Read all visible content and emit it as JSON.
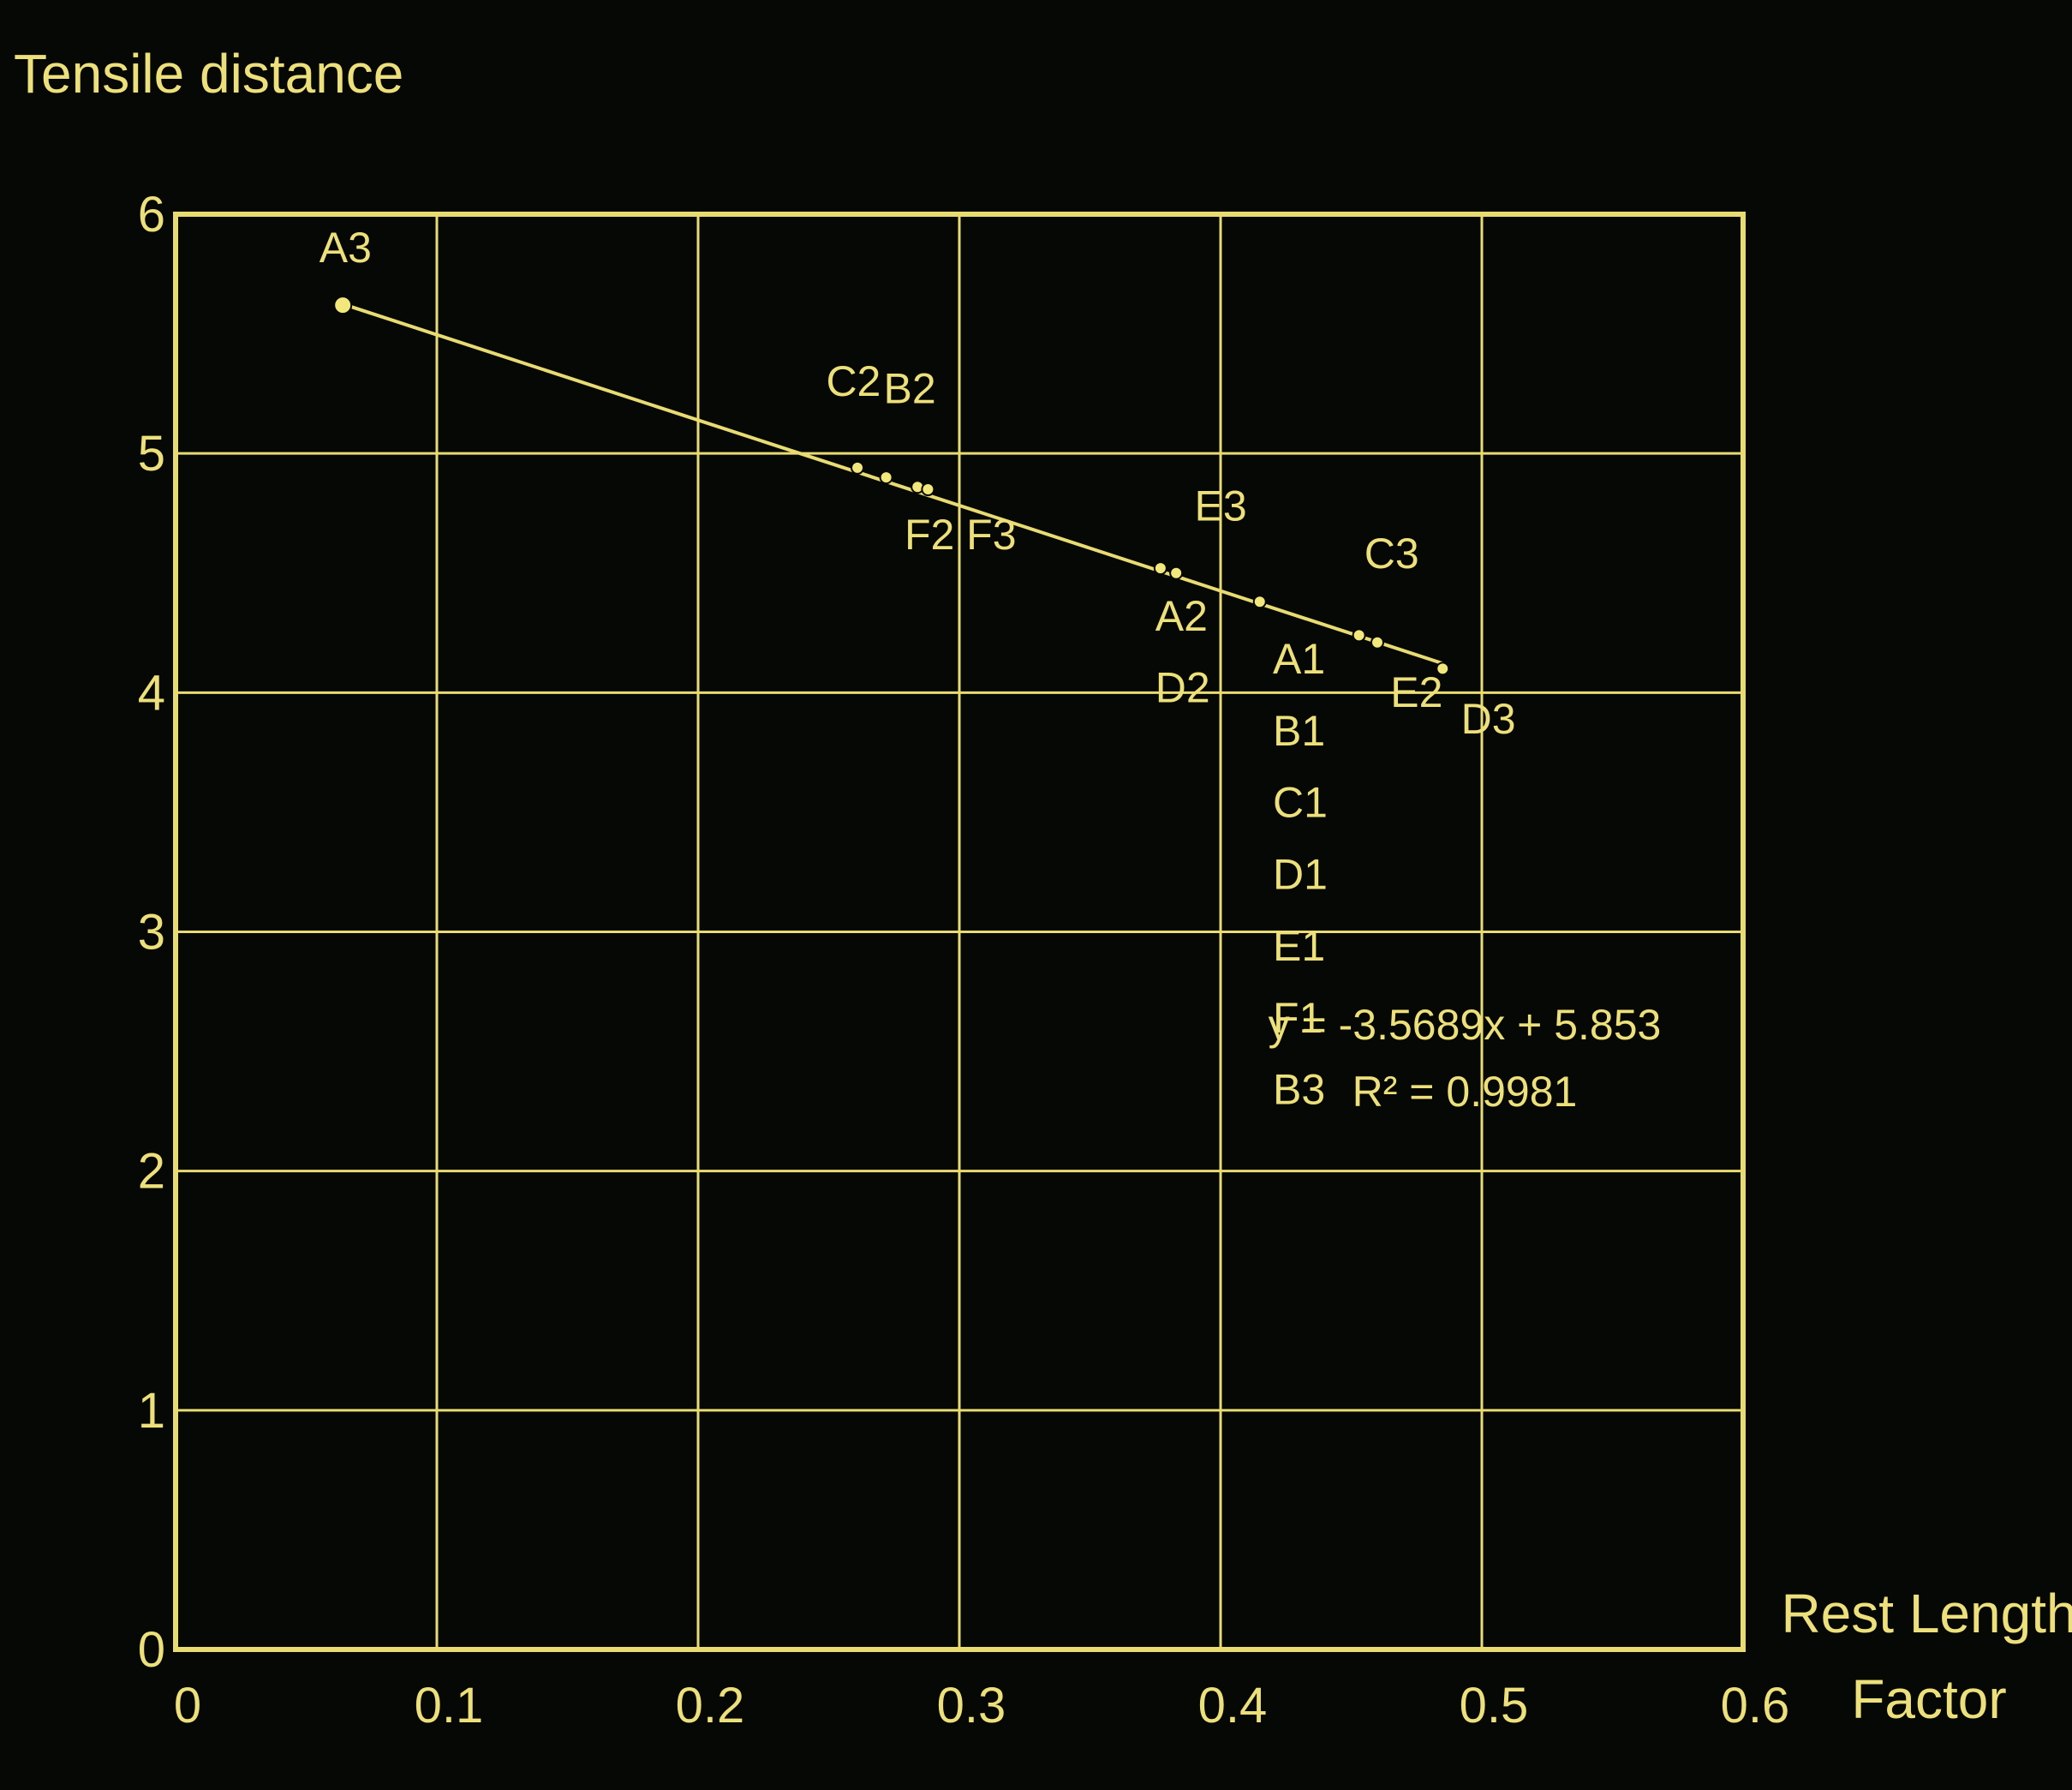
{
  "chart_data": {
    "type": "scatter",
    "ylabel": "Tensile distance",
    "xlabel_lines": [
      "Rest Length",
      "Factor"
    ],
    "xlim": [
      0,
      0.6
    ],
    "ylim": [
      0,
      6
    ],
    "x_ticks": [
      0,
      0.1,
      0.2,
      0.3,
      0.4,
      0.5,
      0.6
    ],
    "y_ticks": [
      0,
      1,
      2,
      3,
      4,
      5,
      6
    ],
    "x_tick_labels": [
      "0",
      "0.1",
      "0.2",
      "0.3",
      "0.4",
      "0.5",
      "0.6"
    ],
    "y_tick_labels": [
      "0",
      "1",
      "2",
      "3",
      "4",
      "5",
      "6"
    ],
    "grid": true,
    "points": [
      {
        "x": 0.064,
        "y": 5.62
      },
      {
        "x": 0.261,
        "y": 4.94
      },
      {
        "x": 0.272,
        "y": 4.9
      },
      {
        "x": 0.284,
        "y": 4.86
      },
      {
        "x": 0.288,
        "y": 4.85
      },
      {
        "x": 0.377,
        "y": 4.52
      },
      {
        "x": 0.383,
        "y": 4.5
      },
      {
        "x": 0.415,
        "y": 4.38
      },
      {
        "x": 0.453,
        "y": 4.24
      },
      {
        "x": 0.46,
        "y": 4.21
      },
      {
        "x": 0.485,
        "y": 4.1
      }
    ],
    "point_labels": [
      {
        "text": "A3",
        "x": 0.055,
        "y": 5.8
      },
      {
        "text": "C2",
        "x": 0.249,
        "y": 5.24
      },
      {
        "text": "B2",
        "x": 0.271,
        "y": 5.21
      },
      {
        "text": "F2 F3",
        "x": 0.279,
        "y": 4.6
      },
      {
        "text": "E3",
        "x": 0.39,
        "y": 4.72
      },
      {
        "text": "A2",
        "x": 0.375,
        "y": 4.26
      },
      {
        "text": "D2",
        "x": 0.375,
        "y": 3.96
      },
      {
        "text": "A1",
        "x": 0.42,
        "y": 4.08
      },
      {
        "text": "B1",
        "x": 0.42,
        "y": 3.78
      },
      {
        "text": "C1",
        "x": 0.42,
        "y": 3.48
      },
      {
        "text": "D1",
        "x": 0.42,
        "y": 3.18
      },
      {
        "text": "E1",
        "x": 0.42,
        "y": 2.88
      },
      {
        "text": "F1",
        "x": 0.42,
        "y": 2.58
      },
      {
        "text": "B3",
        "x": 0.42,
        "y": 2.28
      },
      {
        "text": "C3",
        "x": 0.455,
        "y": 4.52
      },
      {
        "text": "E2",
        "x": 0.465,
        "y": 3.94
      },
      {
        "text": "D3",
        "x": 0.492,
        "y": 3.83
      }
    ],
    "trendline": {
      "slope": -3.5689,
      "intercept": 5.853,
      "x_range": [
        0.064,
        0.485
      ],
      "equation": "y = -3.5689x + 5.853",
      "r_squared": "R² = 0.9981",
      "label_anchor": {
        "x": 0.5,
        "y": 2.55
      }
    },
    "colors": {
      "background": "#050805",
      "foreground": "#e8db72"
    }
  }
}
